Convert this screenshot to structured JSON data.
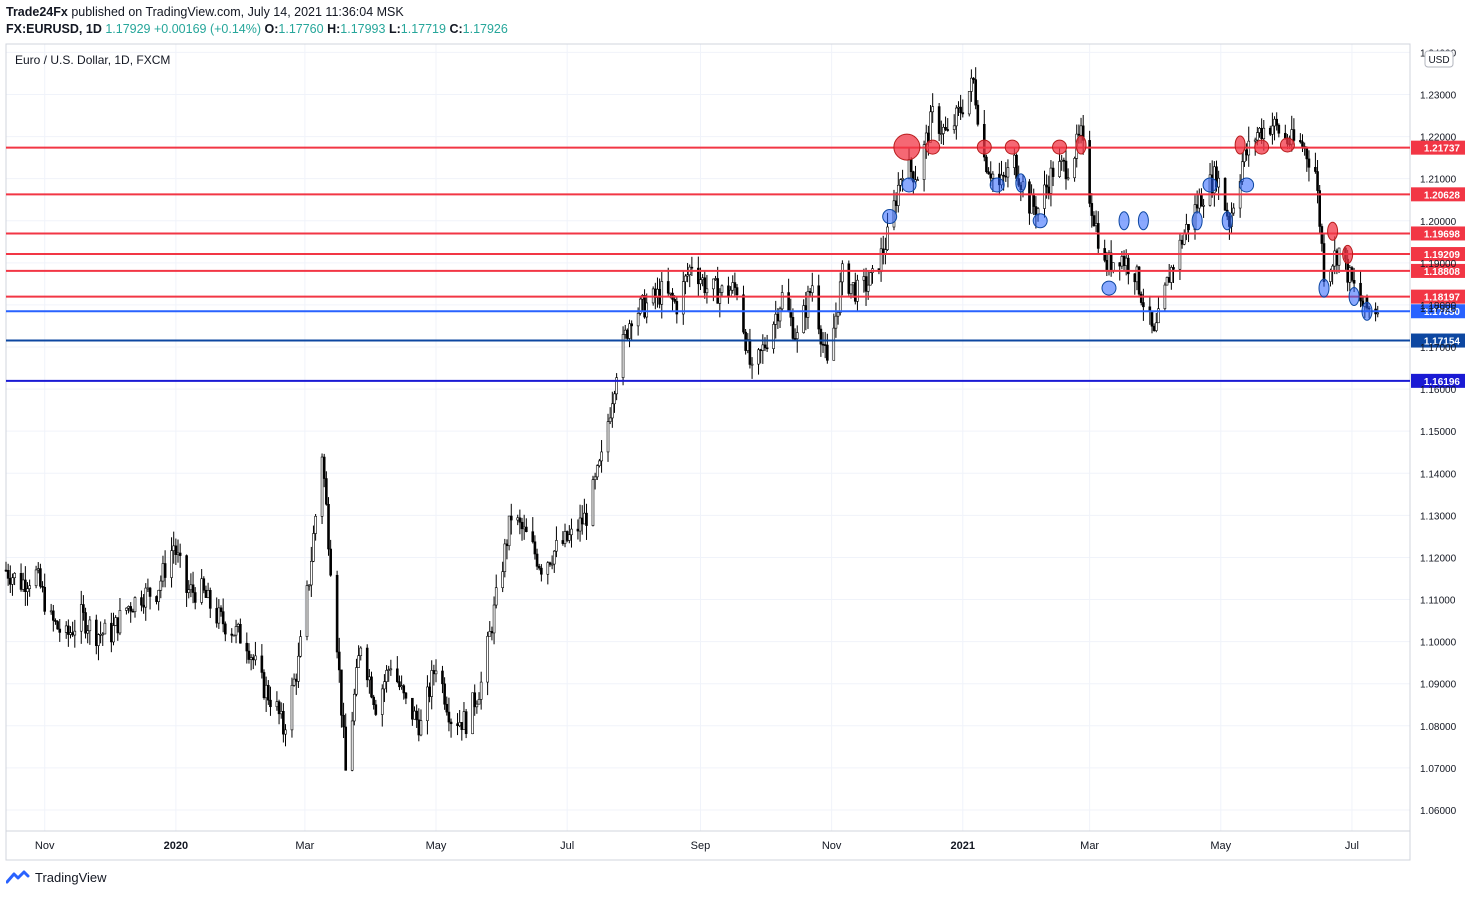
{
  "header": {
    "publisher": "Trade24Fx",
    "published_text": "published on TradingView.com, July 14, 2021 11:36:04 MSK",
    "symbol": "FX:EURUSD, 1D",
    "last": "1.17929",
    "change": "+0.00169 (+0.14%)",
    "o_label": "O:",
    "o_value": "1.17760",
    "h_label": "H:",
    "h_value": "1.17993",
    "l_label": "L:",
    "l_value": "1.17719",
    "c_label": "C:",
    "c_value": "1.17926"
  },
  "footer": {
    "brand": "TradingView"
  },
  "chart_data": {
    "type": "candlestick",
    "title": "Euro / U.S. Dollar, 1D, FXCM",
    "currency_badge": "USD",
    "ylim": [
      1.055,
      1.242
    ],
    "y_ticks": [
      1.06,
      1.07,
      1.08,
      1.09,
      1.1,
      1.11,
      1.12,
      1.13,
      1.14,
      1.15,
      1.16,
      1.17,
      1.18,
      1.19,
      1.2,
      1.21,
      1.22,
      1.23,
      1.24
    ],
    "y_tick_labels": [
      "1.06000",
      "1.07000",
      "1.08000",
      "1.09000",
      "1.10000",
      "1.11000",
      "1.12000",
      "1.13000",
      "1.14000",
      "1.15000",
      "1.16000",
      "1.17000",
      "1.18000",
      "1.19000",
      "1.20000",
      "1.21000",
      "1.22000",
      "1.23000",
      "1.24000"
    ],
    "x_range": [
      "2019-10-14",
      "2021-07-28"
    ],
    "x_ticks": [
      {
        "date": "2019-11-01",
        "label": "Nov"
      },
      {
        "date": "2020-01-01",
        "label": "2020"
      },
      {
        "date": "2020-03-01",
        "label": "Mar"
      },
      {
        "date": "2020-05-01",
        "label": "May"
      },
      {
        "date": "2020-07-01",
        "label": "Jul"
      },
      {
        "date": "2020-09-01",
        "label": "Sep"
      },
      {
        "date": "2020-11-01",
        "label": "Nov"
      },
      {
        "date": "2021-01-01",
        "label": "2021"
      },
      {
        "date": "2021-03-01",
        "label": "Mar"
      },
      {
        "date": "2021-05-01",
        "label": "May"
      },
      {
        "date": "2021-07-01",
        "label": "Jul"
      }
    ],
    "last_price_label": "1.17926",
    "levels": [
      {
        "value": 1.21737,
        "label": "1.21737",
        "color": "#f23645"
      },
      {
        "value": 1.20628,
        "label": "1.20628",
        "color": "#f23645"
      },
      {
        "value": 1.19698,
        "label": "1.19698",
        "color": "#f23645"
      },
      {
        "value": 1.19209,
        "label": "1.19209",
        "color": "#f23645"
      },
      {
        "value": 1.18808,
        "label": "1.18808",
        "color": "#f23645"
      },
      {
        "value": 1.18197,
        "label": "1.18197",
        "color": "#f23645"
      },
      {
        "value": 1.1785,
        "label": "1.17850",
        "color": "#2962ff"
      },
      {
        "value": 1.17154,
        "label": "1.17154",
        "color": "#0d47a1"
      },
      {
        "value": 1.16196,
        "label": "1.16196",
        "color": "#1a1ad4"
      }
    ],
    "series": [
      {
        "name": "EURUSD",
        "points": [
          [
            "2019-10-14",
            1.117
          ],
          [
            "2019-10-21",
            1.114
          ],
          [
            "2019-10-28",
            1.116
          ],
          [
            "2019-11-04",
            1.105
          ],
          [
            "2019-11-11",
            1.101
          ],
          [
            "2019-11-18",
            1.106
          ],
          [
            "2019-11-25",
            1.102
          ],
          [
            "2019-12-02",
            1.102
          ],
          [
            "2019-12-09",
            1.108
          ],
          [
            "2019-12-16",
            1.111
          ],
          [
            "2019-12-23",
            1.112
          ],
          [
            "2019-12-31",
            1.123
          ],
          [
            "2020-01-06",
            1.112
          ],
          [
            "2020-01-13",
            1.112
          ],
          [
            "2020-01-20",
            1.106
          ],
          [
            "2020-01-27",
            1.103
          ],
          [
            "2020-02-03",
            1.1
          ],
          [
            "2020-02-10",
            1.09
          ],
          [
            "2020-02-17",
            1.084
          ],
          [
            "2020-02-20",
            1.079
          ],
          [
            "2020-02-27",
            1.095
          ],
          [
            "2020-03-03",
            1.115
          ],
          [
            "2020-03-09",
            1.145
          ],
          [
            "2020-03-12",
            1.125
          ],
          [
            "2020-03-16",
            1.1
          ],
          [
            "2020-03-20",
            1.069
          ],
          [
            "2020-03-27",
            1.1
          ],
          [
            "2020-04-03",
            1.085
          ],
          [
            "2020-04-10",
            1.095
          ],
          [
            "2020-04-17",
            1.085
          ],
          [
            "2020-04-24",
            1.08
          ],
          [
            "2020-05-01",
            1.095
          ],
          [
            "2020-05-08",
            1.082
          ],
          [
            "2020-05-15",
            1.081
          ],
          [
            "2020-05-22",
            1.09
          ],
          [
            "2020-05-29",
            1.11
          ],
          [
            "2020-06-05",
            1.13
          ],
          [
            "2020-06-12",
            1.125
          ],
          [
            "2020-06-19",
            1.118
          ],
          [
            "2020-06-26",
            1.122
          ],
          [
            "2020-07-03",
            1.125
          ],
          [
            "2020-07-10",
            1.13
          ],
          [
            "2020-07-17",
            1.143
          ],
          [
            "2020-07-24",
            1.165
          ],
          [
            "2020-07-31",
            1.178
          ],
          [
            "2020-08-07",
            1.18
          ],
          [
            "2020-08-14",
            1.183
          ],
          [
            "2020-08-21",
            1.18
          ],
          [
            "2020-08-28",
            1.19
          ],
          [
            "2020-09-04",
            1.184
          ],
          [
            "2020-09-11",
            1.183
          ],
          [
            "2020-09-18",
            1.184
          ],
          [
            "2020-09-25",
            1.163
          ],
          [
            "2020-10-02",
            1.172
          ],
          [
            "2020-10-09",
            1.182
          ],
          [
            "2020-10-16",
            1.172
          ],
          [
            "2020-10-23",
            1.185
          ],
          [
            "2020-10-30",
            1.165
          ],
          [
            "2020-11-06",
            1.187
          ],
          [
            "2020-11-13",
            1.183
          ],
          [
            "2020-11-20",
            1.186
          ],
          [
            "2020-11-27",
            1.196
          ],
          [
            "2020-12-04",
            1.213
          ],
          [
            "2020-12-11",
            1.211
          ],
          [
            "2020-12-18",
            1.225
          ],
          [
            "2020-12-25",
            1.22
          ],
          [
            "2021-01-06",
            1.233
          ],
          [
            "2021-01-11",
            1.215
          ],
          [
            "2021-01-18",
            1.208
          ],
          [
            "2021-01-25",
            1.214
          ],
          [
            "2021-02-01",
            1.204
          ],
          [
            "2021-02-05",
            1.203
          ],
          [
            "2021-02-12",
            1.212
          ],
          [
            "2021-02-19",
            1.213
          ],
          [
            "2021-02-25",
            1.22
          ],
          [
            "2021-03-01",
            1.206
          ],
          [
            "2021-03-08",
            1.189
          ],
          [
            "2021-03-15",
            1.192
          ],
          [
            "2021-03-22",
            1.188
          ],
          [
            "2021-03-31",
            1.172
          ],
          [
            "2021-04-07",
            1.187
          ],
          [
            "2021-04-14",
            1.197
          ],
          [
            "2021-04-21",
            1.205
          ],
          [
            "2021-04-29",
            1.211
          ],
          [
            "2021-05-05",
            1.2
          ],
          [
            "2021-05-11",
            1.214
          ],
          [
            "2021-05-18",
            1.221
          ],
          [
            "2021-05-25",
            1.223
          ],
          [
            "2021-06-01",
            1.219
          ],
          [
            "2021-06-08",
            1.218
          ],
          [
            "2021-06-14",
            1.212
          ],
          [
            "2021-06-18",
            1.188
          ],
          [
            "2021-06-25",
            1.193
          ],
          [
            "2021-07-01",
            1.185
          ],
          [
            "2021-07-07",
            1.179
          ],
          [
            "2021-07-14",
            1.1793
          ]
        ]
      }
    ],
    "markers": [
      {
        "date": "2020-11-28",
        "value": 1.201,
        "color": "blue",
        "shape": "circle"
      },
      {
        "date": "2020-12-07",
        "value": 1.2085,
        "color": "blue",
        "shape": "circle"
      },
      {
        "date": "2020-12-06",
        "value": 1.2175,
        "color": "red",
        "shape": "circle-large"
      },
      {
        "date": "2020-12-18",
        "value": 1.2175,
        "color": "red",
        "shape": "circle"
      },
      {
        "date": "2021-01-11",
        "value": 1.2175,
        "color": "red",
        "shape": "circle"
      },
      {
        "date": "2021-01-17",
        "value": 1.2085,
        "color": "blue",
        "shape": "circle"
      },
      {
        "date": "2021-01-24",
        "value": 1.2175,
        "color": "red",
        "shape": "circle"
      },
      {
        "date": "2021-01-28",
        "value": 1.209,
        "color": "blue",
        "shape": "ellipse"
      },
      {
        "date": "2021-02-06",
        "value": 1.2,
        "color": "blue",
        "shape": "circle"
      },
      {
        "date": "2021-02-15",
        "value": 1.2175,
        "color": "red",
        "shape": "circle"
      },
      {
        "date": "2021-02-25",
        "value": 1.218,
        "color": "red",
        "shape": "ellipse"
      },
      {
        "date": "2021-03-10",
        "value": 1.184,
        "color": "blue",
        "shape": "circle"
      },
      {
        "date": "2021-03-17",
        "value": 1.2,
        "color": "blue",
        "shape": "ellipse"
      },
      {
        "date": "2021-03-26",
        "value": 1.2,
        "color": "blue",
        "shape": "ellipse"
      },
      {
        "date": "2021-04-20",
        "value": 1.2,
        "color": "blue",
        "shape": "ellipse"
      },
      {
        "date": "2021-04-26",
        "value": 1.2085,
        "color": "blue",
        "shape": "circle"
      },
      {
        "date": "2021-05-04",
        "value": 1.2,
        "color": "blue",
        "shape": "ellipse"
      },
      {
        "date": "2021-05-10",
        "value": 1.218,
        "color": "red",
        "shape": "ellipse"
      },
      {
        "date": "2021-05-13",
        "value": 1.2085,
        "color": "blue",
        "shape": "circle"
      },
      {
        "date": "2021-05-20",
        "value": 1.2175,
        "color": "red",
        "shape": "circle"
      },
      {
        "date": "2021-06-01",
        "value": 1.218,
        "color": "red",
        "shape": "circle"
      },
      {
        "date": "2021-06-18",
        "value": 1.184,
        "color": "blue",
        "shape": "ellipse"
      },
      {
        "date": "2021-06-22",
        "value": 1.1975,
        "color": "red",
        "shape": "ellipse"
      },
      {
        "date": "2021-06-29",
        "value": 1.192,
        "color": "red",
        "shape": "ellipse"
      },
      {
        "date": "2021-07-02",
        "value": 1.182,
        "color": "blue",
        "shape": "ellipse"
      },
      {
        "date": "2021-07-08",
        "value": 1.1785,
        "color": "blue",
        "shape": "ellipse"
      }
    ],
    "grid": true
  }
}
